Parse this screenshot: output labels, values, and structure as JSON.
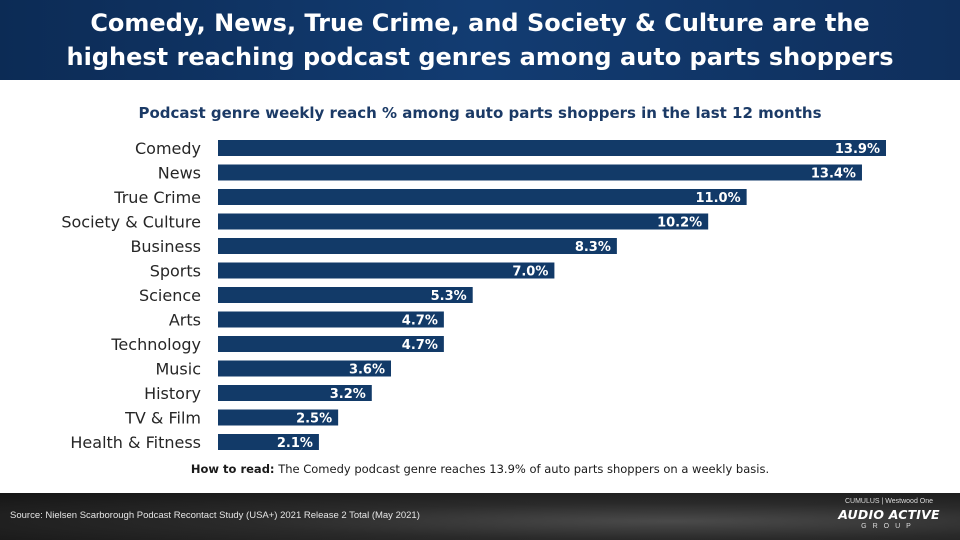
{
  "header": {
    "title_line1": "Comedy, News, True Crime, and Society & Culture are the",
    "title_line2": "highest reaching podcast genres among auto parts shoppers"
  },
  "footnote": {
    "label": "How to read:",
    "text": "The Comedy podcast genre reaches 13.9% of auto parts shoppers on a weekly basis."
  },
  "footer": {
    "source": "Source: Nielsen Scarborough Podcast Recontact Study (USA+) 2021 Release 2 Total (May 2021)",
    "logo_top": "CUMULUS | Westwood One",
    "logo_main": "AUDIO ACTIVE",
    "logo_sub": "GROUP"
  },
  "colors": {
    "bar": "#123a68",
    "header": "#123c72",
    "subtitle": "#1b3a66"
  },
  "chart_data": {
    "type": "bar",
    "orientation": "horizontal",
    "title": "Podcast genre weekly reach % among auto parts shoppers in the last 12 months",
    "categories": [
      "Comedy",
      "News",
      "True Crime",
      "Society & Culture",
      "Business",
      "Sports",
      "Science",
      "Arts",
      "Technology",
      "Music",
      "History",
      "TV & Film",
      "Health & Fitness"
    ],
    "values": [
      13.9,
      13.4,
      11.0,
      10.2,
      8.3,
      7.0,
      5.3,
      4.7,
      4.7,
      3.6,
      3.2,
      2.5,
      2.1
    ],
    "value_labels": [
      "13.9%",
      "13.4%",
      "11.0%",
      "10.2%",
      "8.3%",
      "7.0%",
      "5.3%",
      "4.7%",
      "4.7%",
      "3.6%",
      "3.2%",
      "2.5%",
      "2.1%"
    ],
    "xlim": [
      0,
      13.9
    ],
    "grid": false,
    "legend": "none"
  }
}
